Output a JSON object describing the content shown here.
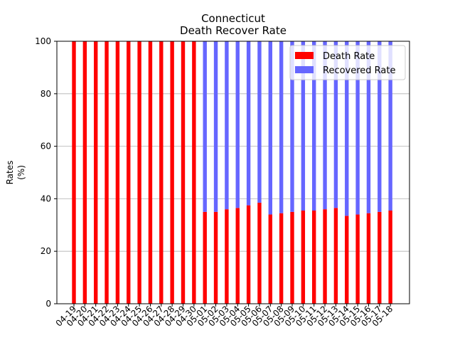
{
  "chart_data": {
    "type": "bar",
    "stacked": true,
    "title": "Connecticut",
    "subtitle": "Death Recover Rate",
    "xlabel": "",
    "ylabel": "Rates\n(%)",
    "ylim": [
      0,
      100
    ],
    "yticks": [
      0,
      20,
      40,
      60,
      80,
      100
    ],
    "grid": "horizontal",
    "legend_position": "top-right",
    "categories": [
      "04-19",
      "04-20",
      "04-21",
      "04-22",
      "04-23",
      "04-24",
      "04-25",
      "04-26",
      "04-27",
      "04-28",
      "04-29",
      "04-30",
      "05-01",
      "05-02",
      "05-03",
      "05-04",
      "05-05",
      "05-06",
      "05-07",
      "05-08",
      "05-09",
      "05-10",
      "05-11",
      "05-12",
      "05-13",
      "05-14",
      "05-15",
      "05-16",
      "05-17",
      "05-18"
    ],
    "series": [
      {
        "name": "Death Rate",
        "color": "#ff0000",
        "values": [
          100,
          100,
          100,
          100,
          100,
          100,
          100,
          100,
          100,
          100,
          100,
          100,
          35,
          35,
          36,
          36.5,
          37.5,
          38.5,
          34,
          34.5,
          35,
          35.5,
          35.5,
          36,
          36.5,
          33.5,
          34,
          34.5,
          35,
          35.5
        ]
      },
      {
        "name": "Recovered Rate",
        "color": "#6666ff",
        "values": [
          0,
          0,
          0,
          0,
          0,
          0,
          0,
          0,
          0,
          0,
          0,
          0,
          65,
          65,
          64,
          63.5,
          62.5,
          61.5,
          66,
          65.5,
          65,
          64.5,
          64.5,
          64,
          63.5,
          66.5,
          66,
          65.5,
          65,
          64.5
        ]
      }
    ]
  }
}
